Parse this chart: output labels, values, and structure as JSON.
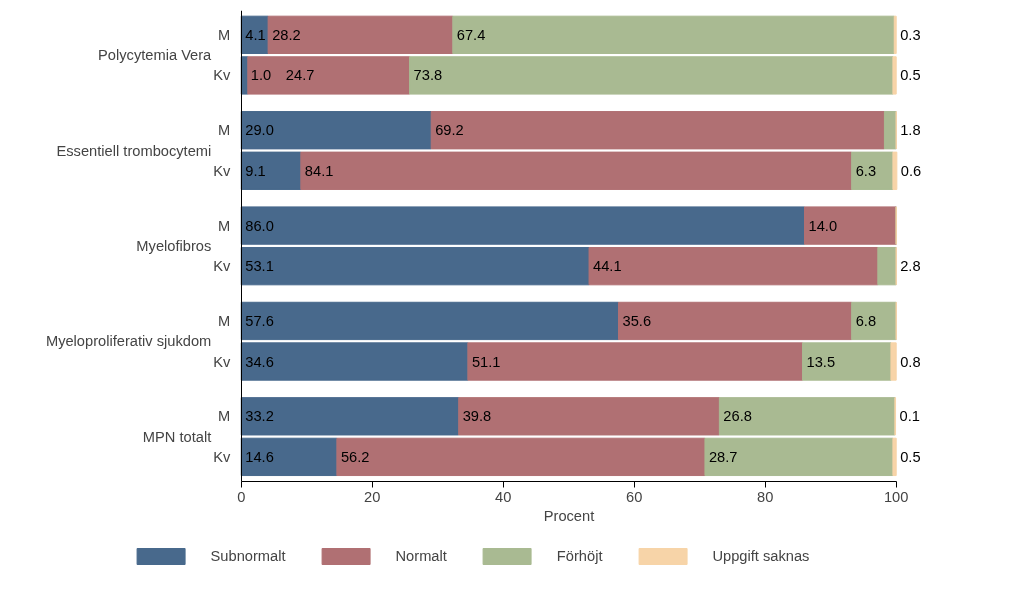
{
  "chart_data": {
    "type": "bar",
    "orientation": "horizontal",
    "stacked": true,
    "categories": [
      "M",
      "Kv",
      "M",
      "Kv",
      "M",
      "Kv",
      "M",
      "Kv",
      "M",
      "Kv"
    ],
    "annotations": [
      "Polycytemia Vera",
      "Essentiell trombocytemi",
      "Myelofibros",
      "Myeloproliferativ sjukdom",
      "MPN totalt"
    ],
    "series": [
      {
        "name": "Subnormalt",
        "color": "#48698c",
        "values": [
          4.1,
          1.0,
          29.0,
          9.1,
          86.0,
          53.1,
          57.6,
          34.6,
          33.2,
          14.6
        ],
        "value_labels": [
          "4.1",
          "1.0",
          "29.0",
          "9.1",
          "86.0",
          "53.1",
          "57.6",
          "34.6",
          "33.2",
          "14.6"
        ]
      },
      {
        "name": "Normalt",
        "color": "#b07073",
        "values": [
          28.2,
          24.7,
          69.2,
          84.1,
          14.0,
          44.1,
          35.6,
          51.1,
          39.8,
          56.2
        ],
        "value_labels": [
          "28.2",
          "24.7",
          "69.2",
          "84.1",
          "14.0",
          "44.1",
          "35.6",
          "51.1",
          "39.8",
          "56.2"
        ]
      },
      {
        "name": "Förhöjt",
        "color": "#a9ba92",
        "values": [
          67.4,
          73.8,
          1.8,
          6.3,
          0,
          2.8,
          6.8,
          13.5,
          26.8,
          28.7
        ],
        "value_labels": [
          "67.4",
          "73.8",
          "1.8",
          "6.3",
          null,
          "2.8",
          "6.8",
          "13.5",
          "26.8",
          "28.7"
        ]
      },
      {
        "name": "Uppgift saknas",
        "color": "#f7d4a8",
        "values": [
          0.3,
          0.5,
          0,
          0.6,
          0,
          0,
          0,
          0.8,
          0.1,
          0.5
        ],
        "value_labels": [
          "0.3",
          "0.5",
          null,
          "0.6",
          null,
          null,
          null,
          "0.8",
          "0.1",
          "0.5"
        ]
      }
    ],
    "xlabel": "Procent",
    "xlim": [
      0,
      100
    ],
    "xticks": [
      0,
      20,
      40,
      60,
      80,
      100
    ],
    "grid": false,
    "legend": "bottom"
  }
}
